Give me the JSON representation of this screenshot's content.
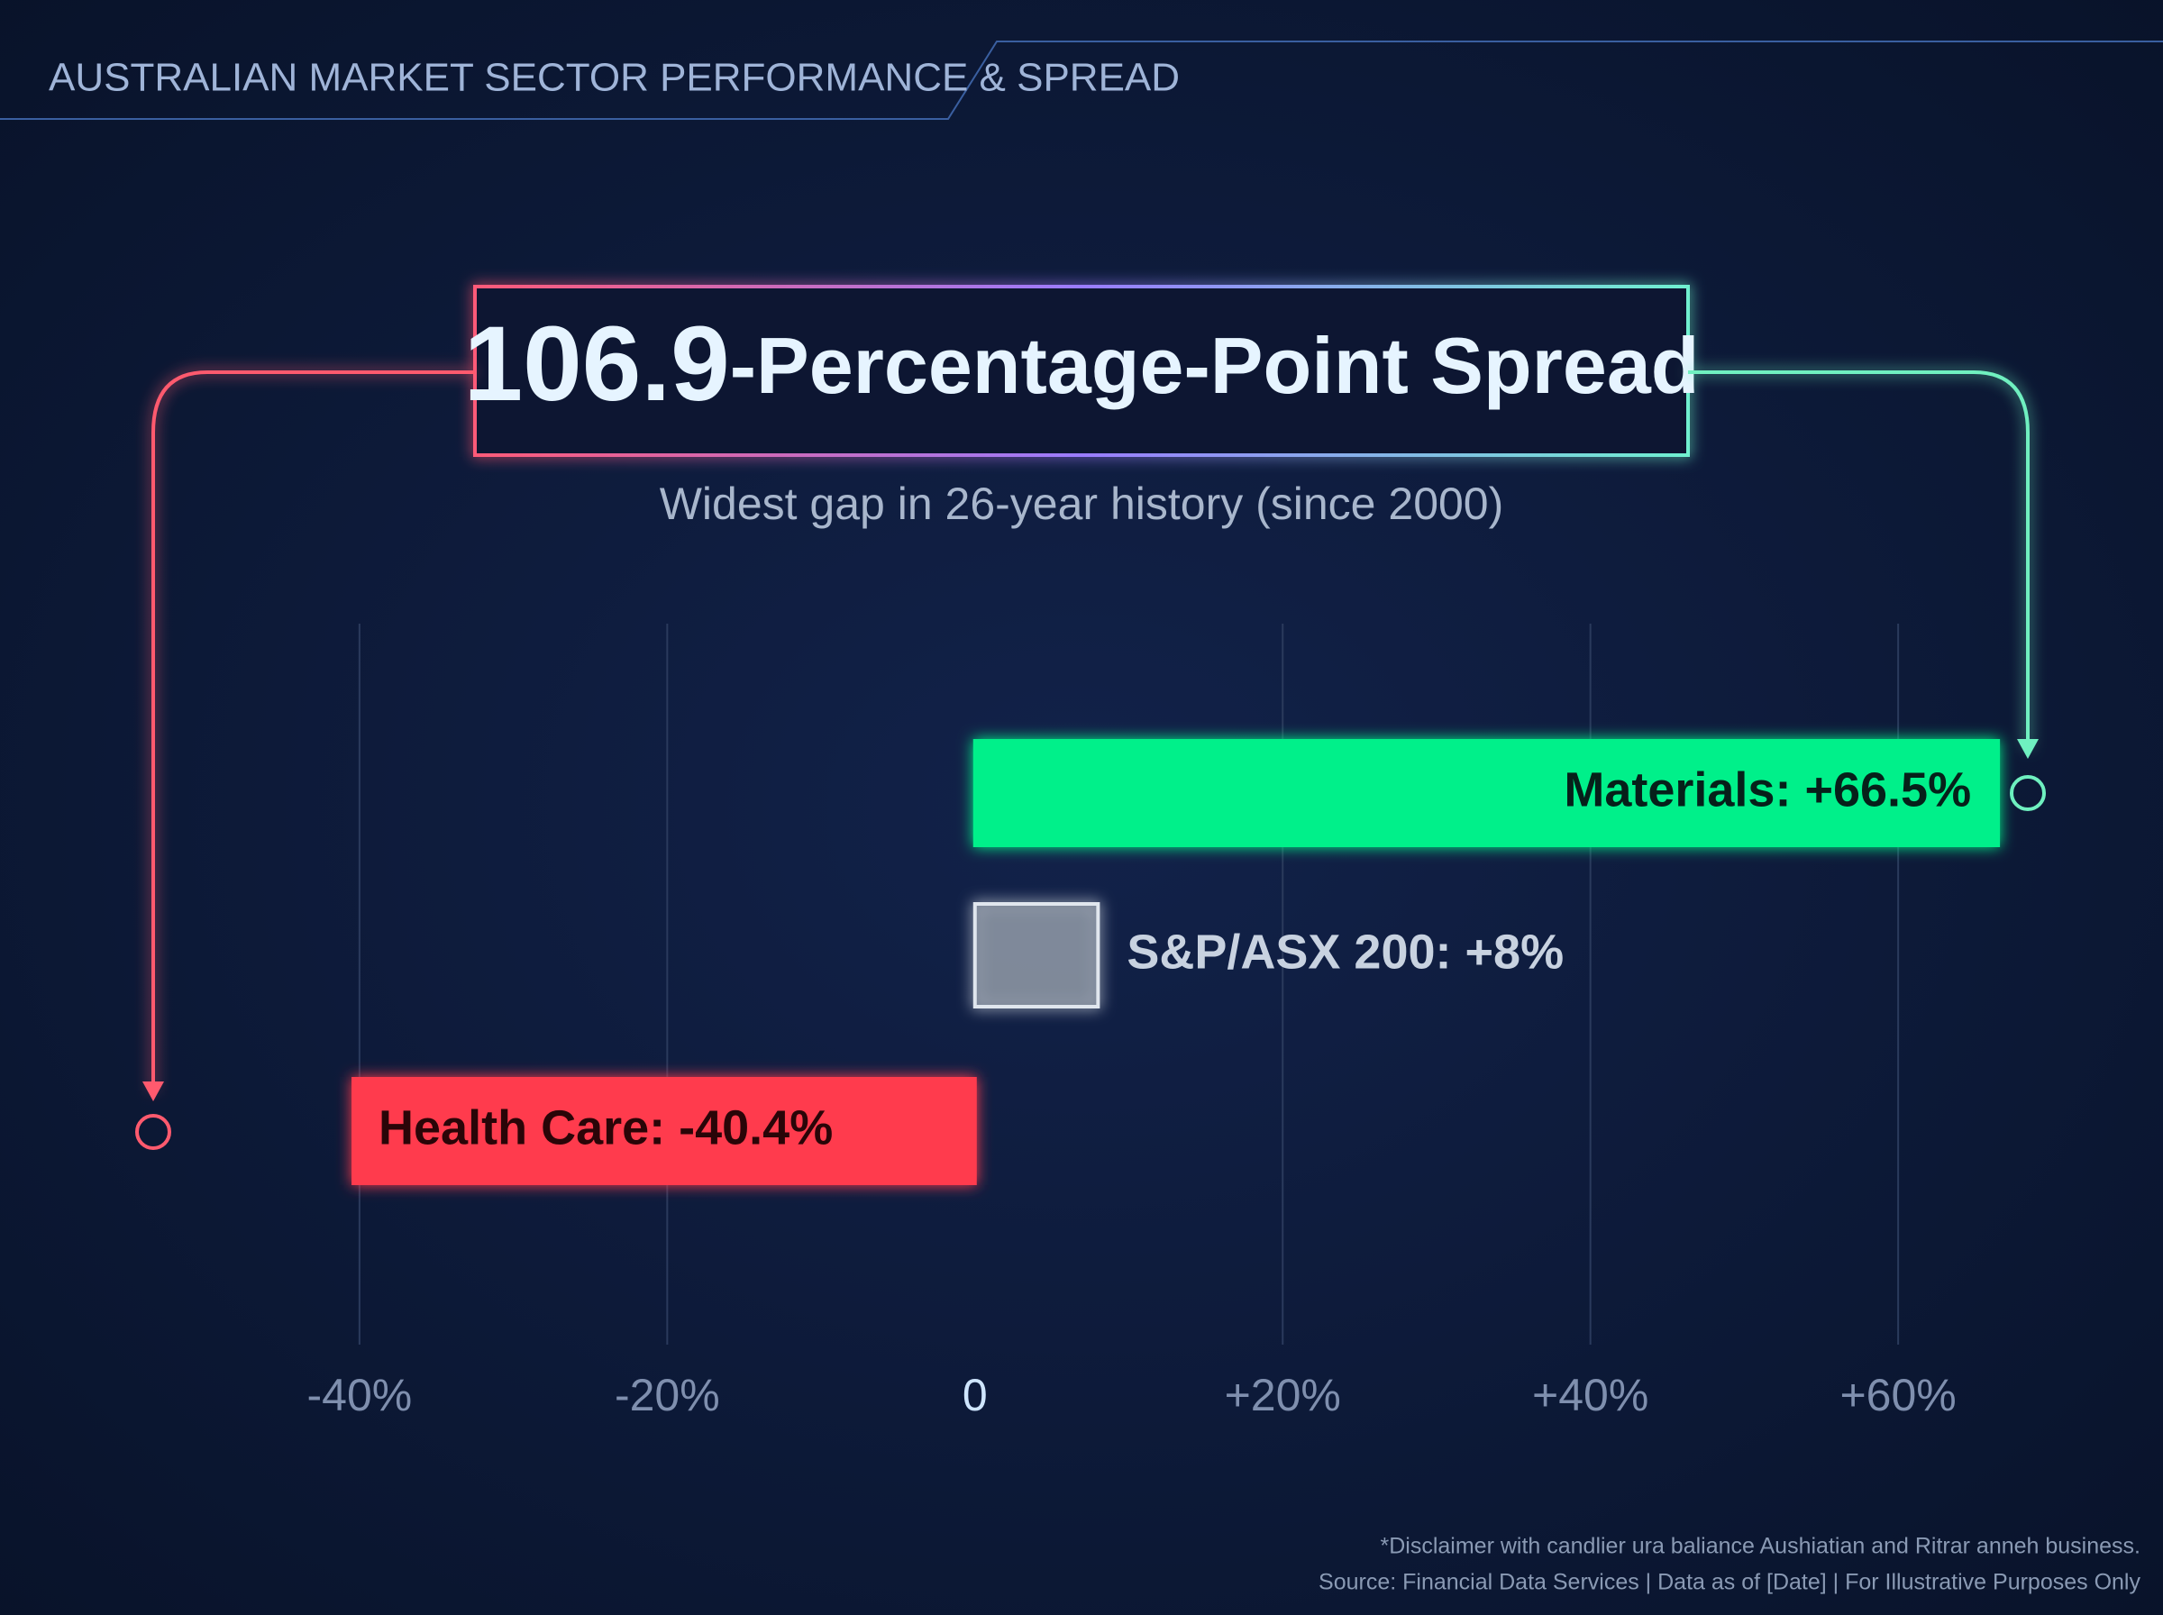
{
  "chart_data": {
    "type": "bar",
    "orientation": "horizontal",
    "header": "AUSTRALIAN MARKET SECTOR PERFORMANCE & SPREAD",
    "headline_value": 106.9,
    "headline_text": "-Percentage-Point Spread",
    "subtitle": "Widest gap in 26-year history (since 2000)",
    "values": [
      66.5,
      8,
      -40.4
    ],
    "value_labels": [
      "Materials: +66.5%",
      "S&P/ASX 200: +8%",
      "Health Care: -40.4%"
    ],
    "colors": [
      "#00f08a",
      "#9aa4ae",
      "#ff3b4e"
    ],
    "xlim": [
      -52,
      72
    ],
    "xticks": [
      {
        "value": -40,
        "label": "-40%"
      },
      {
        "value": -20,
        "label": "-20%"
      },
      0,
      {
        "value": 20,
        "label": "+20%"
      },
      {
        "value": 40,
        "label": "+40%"
      },
      {
        "value": 60,
        "label": "+60%"
      }
    ],
    "grid": true,
    "footnotes": [
      "*Disclaimer with candlier ura baliance Aushiatian and Ritrar anneh business.",
      "Source: Financial Data Services | Data as of [Date] | For Illustrative Purposes Only"
    ]
  }
}
